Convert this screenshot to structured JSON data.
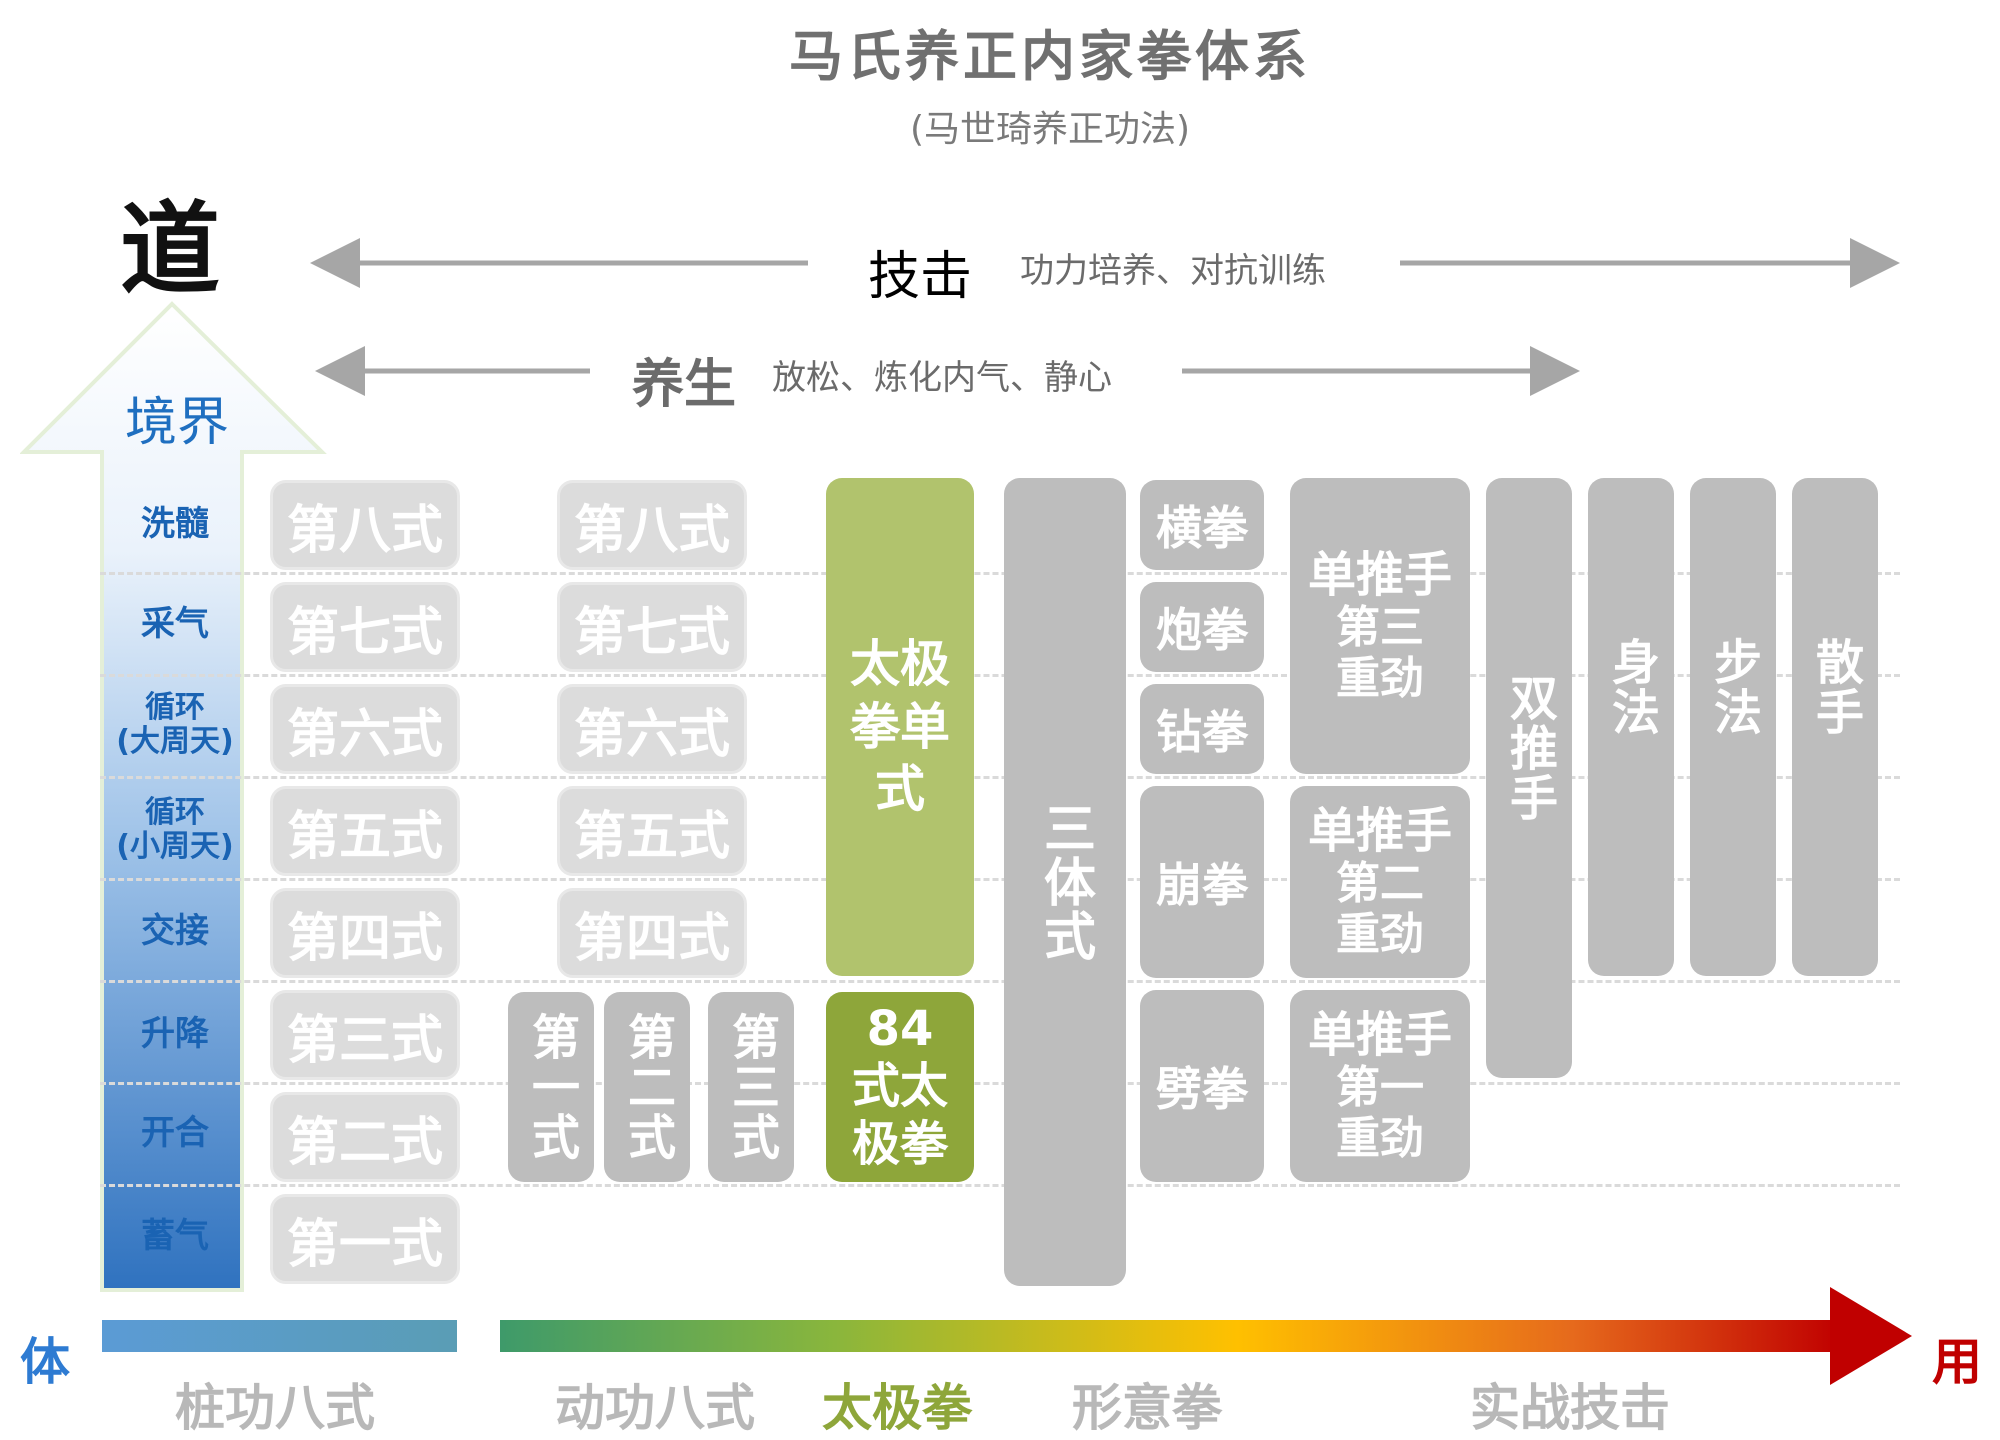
{
  "title": "马氏养正内家拳体系",
  "subtitle": "(马世琦养正功法)",
  "dao": "道",
  "top_ranges": {
    "jiji": {
      "title": "技击",
      "desc": "功力培养、对抗训练"
    },
    "yangsheng": {
      "title": "养生",
      "desc": "放松、炼化内气、静心"
    }
  },
  "vertical_axis": {
    "title": "境界",
    "levels": [
      "洗髓",
      "采气",
      "循环\n(大周天)",
      "循环\n(小周天)",
      "交接",
      "升降",
      "开合",
      "蓄气"
    ]
  },
  "bottom_axis": {
    "left_end": "体",
    "right_end": "用",
    "categories": [
      "桩功八式",
      "动功八式",
      "太极拳",
      "形意拳",
      "实战技击"
    ]
  },
  "columns": {
    "zhuanggong": [
      "第八式",
      "第七式",
      "第六式",
      "第五式",
      "第四式",
      "第三式",
      "第二式",
      "第一式"
    ],
    "donggong": [
      "第八式",
      "第七式",
      "第六式",
      "第五式",
      "第四式"
    ],
    "donggong_low": [
      "第一式",
      "第二式",
      "第三式"
    ],
    "taiji_single": "太极拳单式",
    "taiji_84": "84式太极拳",
    "santi": "三体式",
    "quan": [
      "横拳",
      "炮拳",
      "钻拳",
      "崩拳",
      "劈拳"
    ],
    "tuishou": [
      {
        "t": "单推手",
        "s": "第三",
        "u": "重劲"
      },
      {
        "t": "单推手",
        "s": "第二",
        "u": "重劲"
      },
      {
        "t": "单推手",
        "s": "第一",
        "u": "重劲"
      }
    ],
    "shuangtuishou": "双推手",
    "shenfa": "身法",
    "bufa": "步法",
    "sanshou": "散手"
  },
  "colors": {
    "taiji_light": "#b1c36d",
    "taiji_dark": "#8ea63a",
    "arrow_red": "#c00000",
    "level_blue": "#1a63b3"
  }
}
